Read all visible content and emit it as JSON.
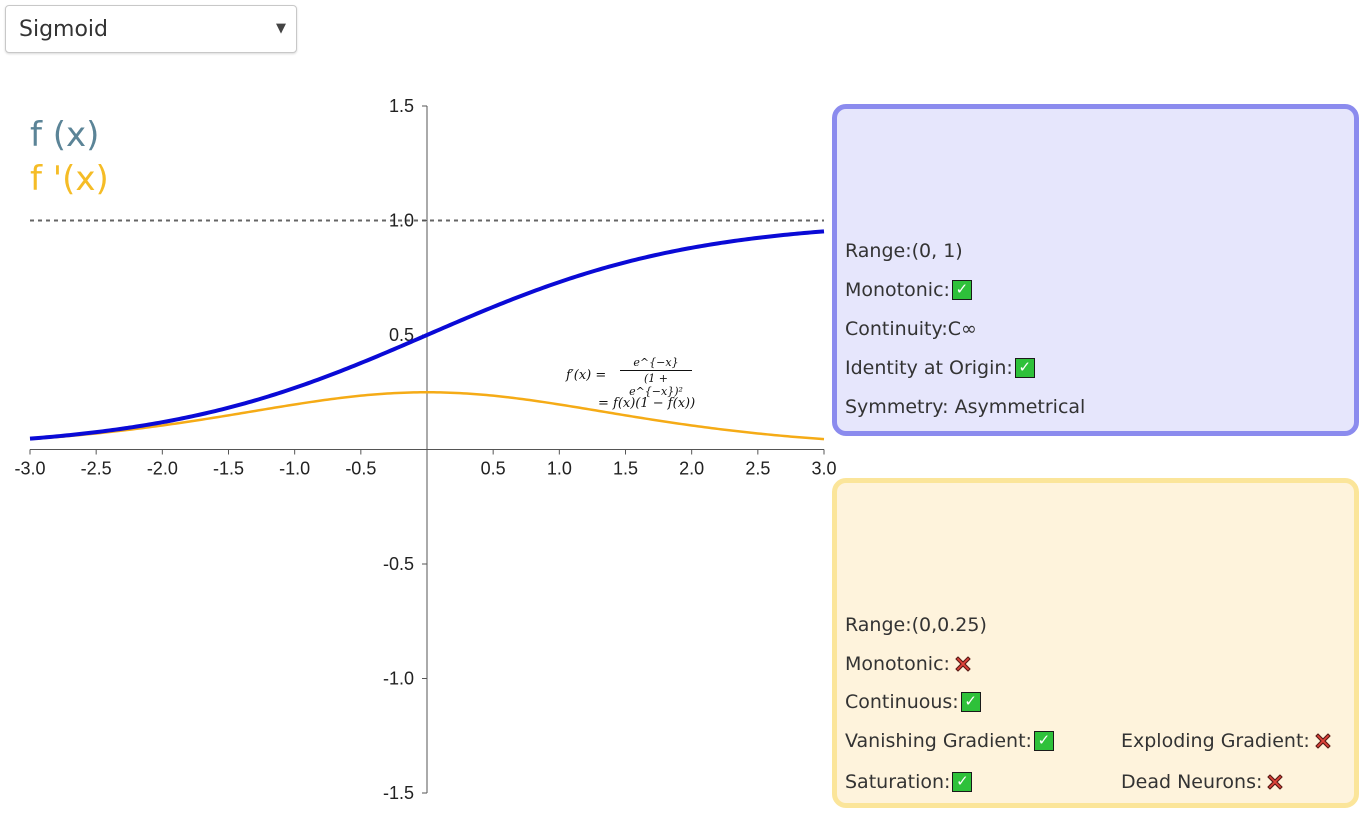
{
  "dropdown": {
    "selected": "Sigmoid"
  },
  "legend": {
    "f": "f (x)",
    "fprime": "f '(x)",
    "f_color": "#5b8497",
    "fprime_color": "#f5bc26"
  },
  "formula": {
    "lhs": "f′(x) =",
    "numerator": "e^{−x}",
    "denominator": "(1 + e^{−x})²",
    "line2": "= f(x)(1 − f(x))"
  },
  "chart_data": {
    "type": "line",
    "x_range": [
      -3.0,
      3.0
    ],
    "ylim": [
      -1.5,
      1.5
    ],
    "x_ticks": [
      "-3.0",
      "-2.5",
      "-2.0",
      "-1.5",
      "-1.0",
      "-0.5",
      "0.5",
      "1.0",
      "1.5",
      "2.0",
      "2.5",
      "3.0"
    ],
    "y_ticks": [
      "1.5",
      "1.0",
      "0.5",
      "-0.5",
      "-1.0",
      "-1.5"
    ],
    "asymptote_y": 1.0,
    "series": [
      {
        "function": "sigmoid",
        "color": "#0a0ad6",
        "x": [
          -3.0,
          -2.0,
          -1.0,
          0.0,
          1.0,
          2.0,
          3.0
        ],
        "y": [
          0.047,
          0.119,
          0.269,
          0.5,
          0.731,
          0.881,
          0.953
        ]
      },
      {
        "function": "sigmoid_derivative",
        "color": "#f5ab16",
        "x": [
          -3.0,
          -2.0,
          -1.0,
          0.0,
          1.0,
          2.0,
          3.0
        ],
        "y": [
          0.045,
          0.105,
          0.197,
          0.25,
          0.197,
          0.105,
          0.045
        ]
      }
    ]
  },
  "function_panel": {
    "range_label": "Range:(0, 1)",
    "monotonic_label": "Monotonic:",
    "monotonic": true,
    "continuity_label": "Continuity:C∞",
    "identity_label": "Identity at Origin:",
    "identity": true,
    "symmetry_label": "Symmetry: Asymmetrical"
  },
  "derivative_panel": {
    "range_label": "Range:(0,0.25)",
    "monotonic_label": "Monotonic:",
    "monotonic": false,
    "continuous_label": "Continuous:",
    "continuous": true,
    "vanishing_label": "Vanishing Gradient:",
    "vanishing": true,
    "exploding_label": "Exploding Gradient:",
    "exploding": false,
    "saturation_label": "Saturation:",
    "saturation": true,
    "dead_label": "Dead Neurons:",
    "dead": false
  }
}
